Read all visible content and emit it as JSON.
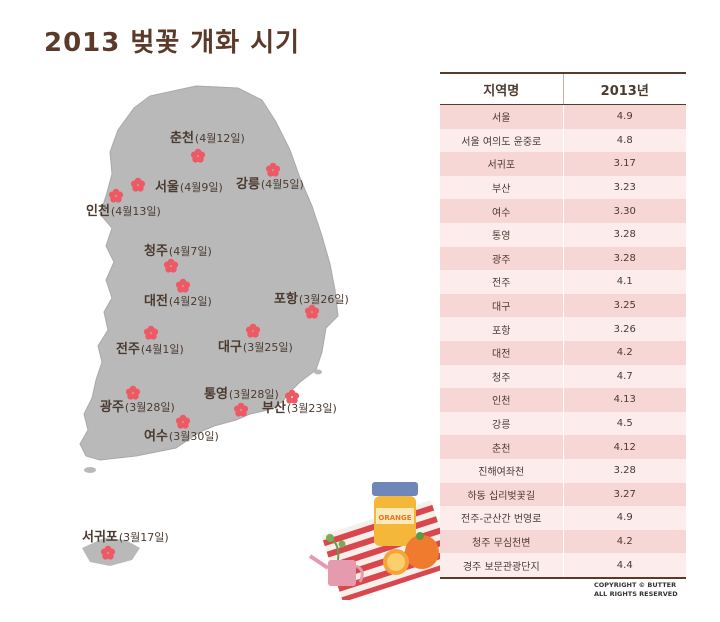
{
  "title": "2013 벚꽃 개화 시기",
  "map_labels": [
    {
      "name": "춘천",
      "date": "(4월12일)"
    },
    {
      "name": "서울",
      "date": "(4월9일)"
    },
    {
      "name": "강릉",
      "date": "(4월5일)"
    },
    {
      "name": "인천",
      "date": "(4월13일)"
    },
    {
      "name": "청주",
      "date": "(4월7일)"
    },
    {
      "name": "대전",
      "date": "(4월2일)"
    },
    {
      "name": "포항",
      "date": "(3월26일)"
    },
    {
      "name": "전주",
      "date": "(4월1일)"
    },
    {
      "name": "대구",
      "date": "(3월25일)"
    },
    {
      "name": "통영",
      "date": "(3월28일)"
    },
    {
      "name": "광주",
      "date": "(3월28일)"
    },
    {
      "name": "부산",
      "date": "(3월23일)"
    },
    {
      "name": "여수",
      "date": "(3월30일)"
    },
    {
      "name": "서귀포",
      "date": "(3월17일)"
    }
  ],
  "table": {
    "headers": [
      "지역명",
      "2013년"
    ],
    "rows": [
      [
        "서울",
        "4.9"
      ],
      [
        "서울 여의도 윤중로",
        "4.8"
      ],
      [
        "서귀포",
        "3.17"
      ],
      [
        "부산",
        "3.23"
      ],
      [
        "여수",
        "3.30"
      ],
      [
        "통영",
        "3.28"
      ],
      [
        "광주",
        "3.28"
      ],
      [
        "전주",
        "4.1"
      ],
      [
        "대구",
        "3.25"
      ],
      [
        "포항",
        "3.26"
      ],
      [
        "대전",
        "4.2"
      ],
      [
        "청주",
        "4.7"
      ],
      [
        "인천",
        "4.13"
      ],
      [
        "강릉",
        "4.5"
      ],
      [
        "춘천",
        "4.12"
      ],
      [
        "진해여좌천",
        "3.28"
      ],
      [
        "하동 십리벚꽃길",
        "3.27"
      ],
      [
        "전주-군산간 번영로",
        "4.9"
      ],
      [
        "청주 무심천변",
        "4.2"
      ],
      [
        "경주 보문관광단지",
        "4.4"
      ]
    ]
  },
  "jar_label": "ORANGE",
  "copyright": [
    "COPYRIGHT © BUTTER",
    "ALL RIGHTS RESERVED"
  ],
  "colors": {
    "title": "#5b3a2a",
    "map": "#b8b8b8",
    "flower": "#ee5a63",
    "row_odd": "#f7d6d6",
    "row_even": "#fcecec"
  }
}
